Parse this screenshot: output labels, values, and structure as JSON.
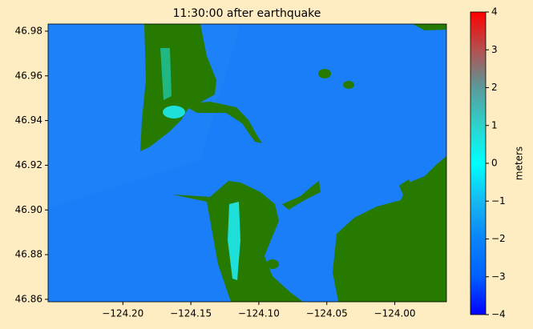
{
  "chart_data": {
    "type": "map",
    "title": "11:30:00 after earthquake",
    "xlim": [
      -124.255,
      -123.962
    ],
    "ylim": [
      46.8589,
      46.9832
    ],
    "xticks": [
      {
        "value": -124.2,
        "label": "−124.20"
      },
      {
        "value": -124.15,
        "label": "−124.15"
      },
      {
        "value": -124.1,
        "label": "−124.10"
      },
      {
        "value": -124.05,
        "label": "−124.05"
      },
      {
        "value": -124.0,
        "label": "−124.00"
      }
    ],
    "yticks": [
      46.98,
      46.96,
      46.94,
      46.92,
      {
        "value": 46.9,
        "label": "46.90"
      },
      46.88,
      46.86
    ],
    "colorbar": {
      "label": "meters",
      "lim": [
        -4,
        4
      ],
      "ticks": [
        {
          "value": -4,
          "label": "−4"
        },
        {
          "value": -3,
          "label": "−3"
        },
        {
          "value": -2,
          "label": "−2"
        },
        {
          "value": -1,
          "label": "−1"
        },
        0,
        1,
        2,
        3,
        4
      ],
      "colors": [
        "#0000ff",
        "#0060ff",
        "#0a84f8",
        "#16b8f0",
        "#00ffff",
        "#2ed2cc",
        "#5a9a9a",
        "#b45050",
        "#ff0000"
      ]
    }
  }
}
